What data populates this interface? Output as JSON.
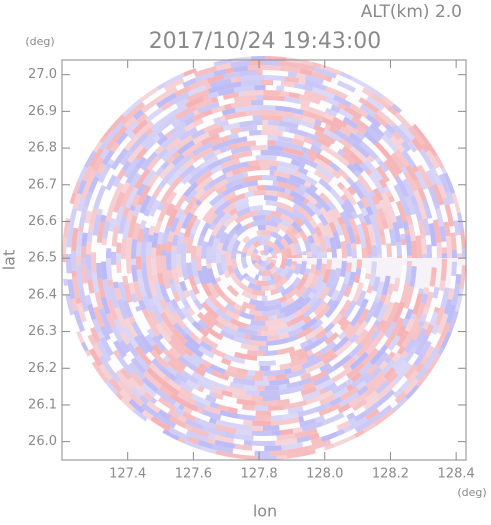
{
  "chart_data": {
    "type": "radar-ppi",
    "title": "2017/10/24 19:43:00",
    "subtitle": "ALT(km) 2.0",
    "xlabel": "lon",
    "ylabel": "lat",
    "xunit": "(deg)",
    "yunit": "(deg)",
    "xlim": [
      127.2,
      128.43
    ],
    "ylim": [
      25.95,
      27.04
    ],
    "xticks": [
      127.4,
      127.6,
      127.8,
      {
        "value": 128,
        "label": "128.0"
      },
      128.2,
      128.4
    ],
    "yticks": [
      {
        "value": 26,
        "label": "26.0"
      },
      26.1,
      26.2,
      26.3,
      26.4,
      26.5,
      26.6,
      26.7,
      26.8,
      26.9,
      {
        "value": 27,
        "label": "27.0"
      }
    ]
  }
}
